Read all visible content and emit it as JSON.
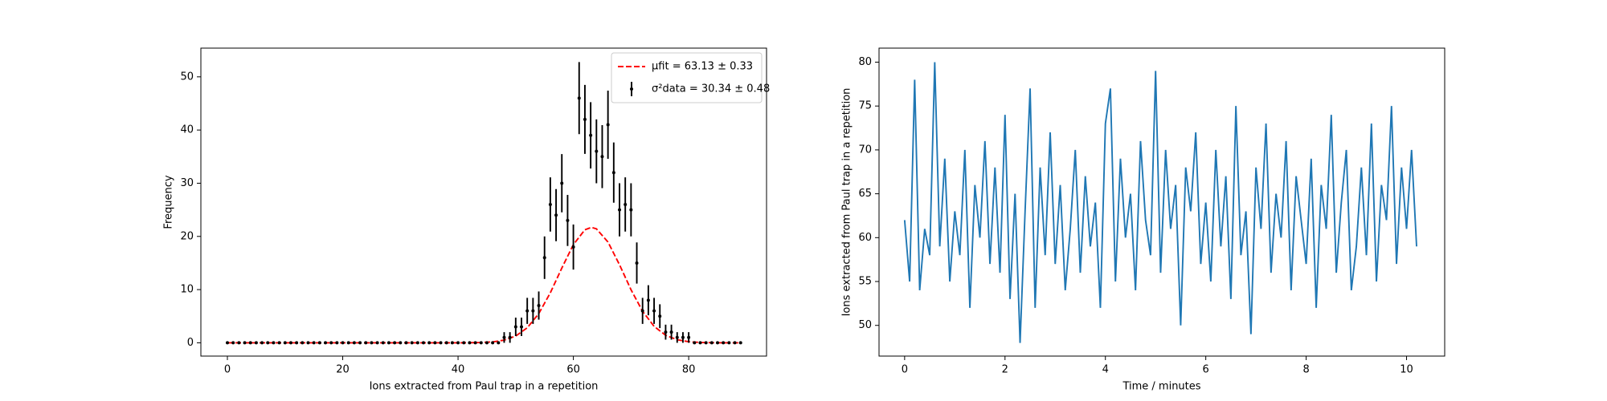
{
  "chart_data": [
    {
      "type": "errorbar",
      "xlabel": "Ions extracted from Paul trap in a repetition",
      "ylabel": "Frequency",
      "xlim": [
        -4.6,
        93.5
      ],
      "ylim": [
        -2.5,
        55.4
      ],
      "xticks": [
        0,
        20,
        40,
        60,
        80
      ],
      "yticks": [
        0,
        10,
        20,
        30,
        40,
        50
      ],
      "legend": "upper right",
      "series": [
        {
          "name": "μfit = 63.13 ± 0.33",
          "kind": "line",
          "color": "#ff0000",
          "dashed": true,
          "x": [
            0,
            36,
            40,
            42,
            44,
            46,
            48,
            50,
            52,
            54,
            56,
            58,
            60,
            62,
            63.13,
            64,
            66,
            68,
            70,
            72,
            74,
            76,
            78,
            80,
            82,
            84,
            86,
            88,
            89
          ],
          "values": [
            0,
            0,
            0,
            0.01,
            0.05,
            0.17,
            0.5,
            1.27,
            2.82,
            5.49,
            9.39,
            14.06,
            18.46,
            21.25,
            21.7,
            21.43,
            18.95,
            14.68,
            9.97,
            5.93,
            3.09,
            1.41,
            0.57,
            0.2,
            0.06,
            0.02,
            0,
            0,
            0
          ]
        },
        {
          "name": "σ²data = 30.34 ± 0.48",
          "kind": "errorbar",
          "color": "#000000",
          "x": [
            0,
            1,
            2,
            3,
            4,
            5,
            6,
            7,
            8,
            9,
            10,
            11,
            12,
            13,
            14,
            15,
            16,
            17,
            18,
            19,
            20,
            21,
            22,
            23,
            24,
            25,
            26,
            27,
            28,
            29,
            30,
            31,
            32,
            33,
            34,
            35,
            36,
            37,
            38,
            39,
            40,
            41,
            42,
            43,
            44,
            45,
            46,
            47,
            48,
            49,
            50,
            51,
            52,
            53,
            54,
            55,
            56,
            57,
            58,
            59,
            60,
            61,
            62,
            63,
            64,
            65,
            66,
            67,
            68,
            69,
            70,
            71,
            72,
            73,
            74,
            75,
            76,
            77,
            78,
            79,
            80,
            81,
            82,
            83,
            84,
            85,
            86,
            87,
            88,
            89
          ],
          "values": [
            0,
            0,
            0,
            0,
            0,
            0,
            0,
            0,
            0,
            0,
            0,
            0,
            0,
            0,
            0,
            0,
            0,
            0,
            0,
            0,
            0,
            0,
            0,
            0,
            0,
            0,
            0,
            0,
            0,
            0,
            0,
            0,
            0,
            0,
            0,
            0,
            0,
            0,
            0,
            0,
            0,
            0,
            0,
            0,
            0,
            0,
            0,
            0,
            1,
            1,
            3,
            3,
            6,
            6,
            7,
            16,
            26,
            24,
            30,
            23,
            18,
            46,
            42,
            39,
            36,
            35,
            41,
            32,
            25,
            26,
            25,
            15,
            6,
            8,
            6,
            5,
            2,
            2,
            1,
            1,
            1,
            0,
            0,
            0,
            0,
            0,
            0,
            0,
            0,
            0
          ],
          "errors": [
            0,
            0,
            0,
            0,
            0,
            0,
            0,
            0,
            0,
            0,
            0,
            0,
            0,
            0,
            0,
            0,
            0,
            0,
            0,
            0,
            0,
            0,
            0,
            0,
            0,
            0,
            0,
            0,
            0,
            0,
            0,
            0,
            0,
            0,
            0,
            0,
            0,
            0,
            0,
            0,
            0,
            0,
            0,
            0,
            0,
            0,
            0,
            0,
            1,
            1,
            1.73,
            1.73,
            2.45,
            2.45,
            2.65,
            4,
            5.1,
            4.9,
            5.48,
            4.8,
            4.24,
            6.78,
            6.48,
            6.24,
            6,
            5.92,
            6.4,
            5.66,
            5,
            5.1,
            5,
            3.87,
            2.45,
            2.83,
            2.45,
            2.24,
            1.41,
            1.41,
            1,
            1,
            1,
            0,
            0,
            0,
            0,
            0,
            0,
            0,
            0,
            0
          ]
        }
      ]
    },
    {
      "type": "line",
      "xlabel": "Time / minutes",
      "ylabel": "Ions extracted from Paul trap in a repetition",
      "xlim": [
        -0.51,
        10.76
      ],
      "ylim": [
        46.5,
        81.6
      ],
      "xticks": [
        0,
        2,
        4,
        6,
        8,
        10
      ],
      "yticks": [
        50,
        55,
        60,
        65,
        70,
        75,
        80
      ],
      "series": [
        {
          "kind": "line",
          "color": "#1f77b4",
          "x": [
            0,
            0.1,
            0.2,
            0.3,
            0.4,
            0.5,
            0.6,
            0.7,
            0.8,
            0.9,
            1,
            1.1,
            1.2,
            1.3,
            1.4,
            1.5,
            1.6,
            1.7,
            1.8,
            1.9,
            2,
            2.1,
            2.2,
            2.3,
            2.4,
            2.5,
            2.6,
            2.7,
            2.8,
            2.9,
            3,
            3.1,
            3.2,
            3.3,
            3.4,
            3.5,
            3.6,
            3.7,
            3.8,
            3.9,
            4,
            4.1,
            4.2,
            4.3,
            4.4,
            4.5,
            4.6,
            4.7,
            4.8,
            4.9,
            5,
            5.1,
            5.2,
            5.3,
            5.4,
            5.5,
            5.6,
            5.7,
            5.8,
            5.9,
            6,
            6.1,
            6.2,
            6.3,
            6.4,
            6.5,
            6.6,
            6.7,
            6.8,
            6.9,
            7,
            7.1,
            7.2,
            7.3,
            7.4,
            7.5,
            7.6,
            7.7,
            7.8,
            7.9,
            8,
            8.1,
            8.2,
            8.3,
            8.4,
            8.5,
            8.6,
            8.7,
            8.8,
            8.9,
            9,
            9.1,
            9.2,
            9.3,
            9.4,
            9.5,
            9.6,
            9.7,
            9.8,
            9.9,
            10,
            10.1,
            10.2
          ],
          "values": [
            62,
            55,
            78,
            54,
            61,
            58,
            80,
            59,
            69,
            55,
            63,
            58,
            70,
            52,
            66,
            60,
            71,
            57,
            68,
            56,
            74,
            53,
            65,
            48,
            63,
            77,
            52,
            68,
            58,
            72,
            57,
            66,
            54,
            61,
            70,
            56,
            67,
            59,
            64,
            52,
            73,
            77,
            55,
            69,
            60,
            65,
            54,
            71,
            62,
            58,
            79,
            56,
            70,
            61,
            66,
            50,
            68,
            63,
            72,
            57,
            64,
            55,
            70,
            59,
            67,
            53,
            75,
            58,
            63,
            49,
            68,
            61,
            73,
            56,
            65,
            60,
            71,
            54,
            67,
            62,
            57,
            69,
            52,
            66,
            61,
            74,
            56,
            64,
            70,
            54,
            59,
            68,
            58,
            73,
            55,
            66,
            62,
            75,
            57,
            68,
            61,
            70,
            59
          ]
        }
      ]
    }
  ]
}
